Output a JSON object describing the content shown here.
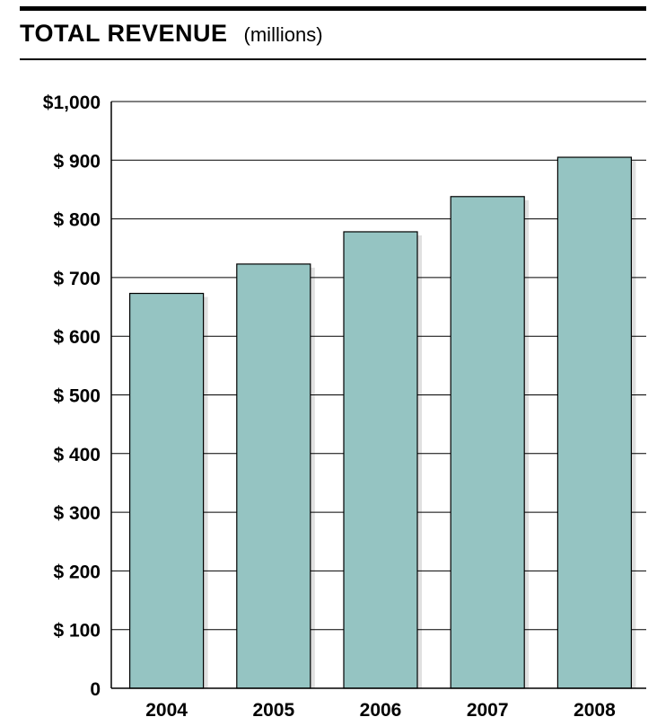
{
  "header": {
    "title": "TOTAL REVENUE",
    "subtitle": "(millions)"
  },
  "chart_data": {
    "type": "bar",
    "title": "TOTAL REVENUE",
    "subtitle": "(millions)",
    "categories": [
      "2004",
      "2005",
      "2006",
      "2007",
      "2008"
    ],
    "values": [
      673,
      723,
      778,
      838,
      905
    ],
    "ylim": [
      0,
      1000
    ],
    "yticks": [
      0,
      100,
      200,
      300,
      400,
      500,
      600,
      700,
      800,
      900,
      1000
    ],
    "ytick_labels": [
      "0",
      "$ 100",
      "$ 200",
      "$ 300",
      "$ 400",
      "$ 500",
      "$ 600",
      "$ 700",
      "$ 800",
      "$ 900",
      "$1,000"
    ],
    "xlabel": "",
    "ylabel": "",
    "grid": true,
    "legend": "none",
    "bar_color": "#95c4c2",
    "bar_edge_color": "#000000"
  }
}
